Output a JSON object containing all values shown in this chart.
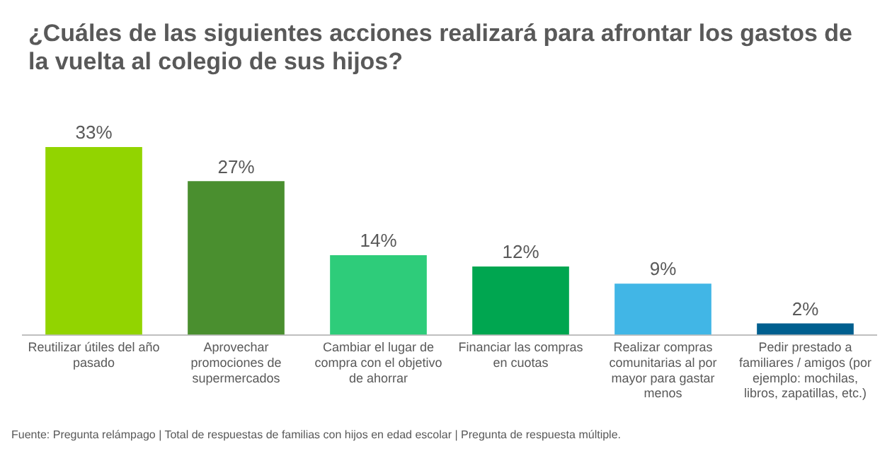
{
  "chart_data": {
    "type": "bar",
    "title": "¿Cuáles de las siguientes acciones realizará para afrontar los gastos de la vuelta al colegio de sus hijos?",
    "categories": [
      "Reutilizar útiles del año pasado",
      "Aprovechar promociones de supermercados",
      "Cambiar el lugar de compra con el objetivo de ahorrar",
      "Financiar las compras en cuotas",
      "Realizar compras comunitarias al por mayor para gastar menos",
      "Pedir prestado a familiares / amigos (por ejemplo: mochilas, libros, zapatillas, etc.)"
    ],
    "values": [
      33,
      27,
      14,
      12,
      9,
      2
    ],
    "colors": [
      "#92d400",
      "#4a8f2f",
      "#2ecc7a",
      "#00a650",
      "#41b6e6",
      "#005f8f"
    ],
    "value_labels": [
      "33%",
      "27%",
      "14%",
      "12%",
      "9%",
      "2%"
    ],
    "grid": false,
    "legend": false,
    "annotations": [
      "Fuente: Pregunta relámpago | Total de respuestas de familias con hijos en edad escolar | Pregunta de respuesta múltiple."
    ]
  }
}
